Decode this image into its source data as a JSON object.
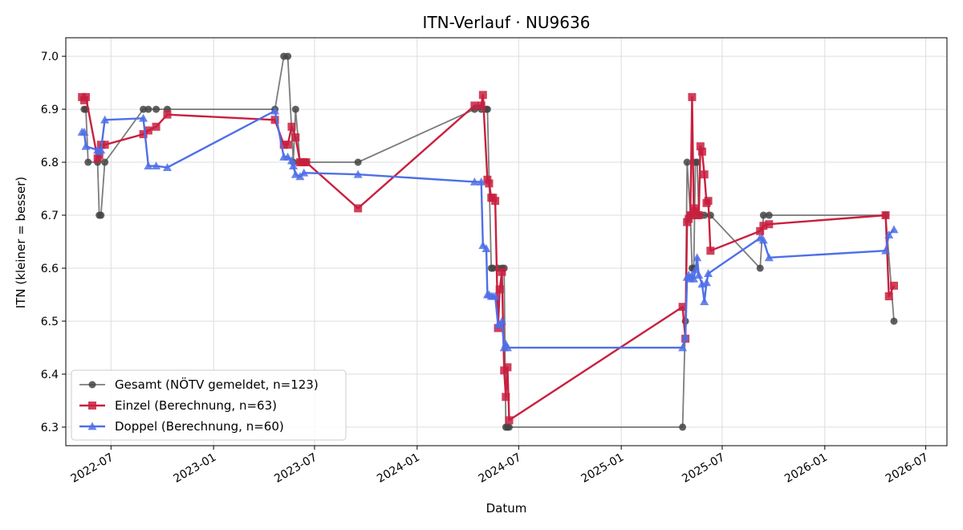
{
  "chart_data": {
    "type": "line",
    "title": "ITN-Verlauf · NU9636",
    "xlabel": "Datum",
    "ylabel": "ITN  (kleiner = besser)",
    "x_type": "date",
    "xlim": [
      "2022-04-11",
      "2026-08-08"
    ],
    "ylim": [
      6.265,
      7.035
    ],
    "y_ticks": [
      6.3,
      6.4,
      6.5,
      6.6,
      6.7,
      6.8,
      6.9,
      7.0
    ],
    "y_tick_labels": [
      "6.3",
      "6.4",
      "6.5",
      "6.6",
      "6.7",
      "6.8",
      "6.9",
      "7.0"
    ],
    "x_ticks": [
      "2022-07-01",
      "2023-01-01",
      "2023-07-01",
      "2024-01-01",
      "2024-07-01",
      "2025-01-01",
      "2025-07-01",
      "2026-01-01",
      "2026-07-01"
    ],
    "x_tick_labels": [
      "2022-07",
      "2023-01",
      "2023-07",
      "2024-01",
      "2024-07",
      "2025-01",
      "2025-07",
      "2026-01",
      "2026-07"
    ],
    "grid": true,
    "legend_position": "bottom-left",
    "series": [
      {
        "name": "Gesamt (NÖTV gemeldet, n=123)",
        "color": "#444444",
        "marker": "circle",
        "x": [
          "2022-05-14",
          "2022-05-17",
          "2022-05-21",
          "2022-06-07",
          "2022-06-10",
          "2022-06-13",
          "2022-06-20",
          "2022-08-28",
          "2022-09-06",
          "2022-09-20",
          "2022-10-10",
          "2023-04-21",
          "2023-05-07",
          "2023-05-14",
          "2023-05-24",
          "2023-05-28",
          "2023-06-05",
          "2023-06-12",
          "2023-06-16",
          "2023-09-17",
          "2024-04-13",
          "2024-04-25",
          "2024-05-04",
          "2024-05-06",
          "2024-05-13",
          "2024-05-16",
          "2024-05-25",
          "2024-06-01",
          "2024-06-05",
          "2024-06-08",
          "2024-06-11",
          "2024-06-14",
          "2025-04-21",
          "2025-04-26",
          "2025-04-29",
          "2025-05-05",
          "2025-05-08",
          "2025-05-11",
          "2025-05-14",
          "2025-05-17",
          "2025-05-20",
          "2025-05-30",
          "2025-06-10",
          "2025-09-07",
          "2025-09-13",
          "2025-09-23",
          "2026-04-20",
          "2026-05-05"
        ],
        "values": [
          6.9,
          6.9,
          6.8,
          6.8,
          6.7,
          6.7,
          6.8,
          6.9,
          6.9,
          6.9,
          6.9,
          6.9,
          7.0,
          7.0,
          6.8,
          6.9,
          6.8,
          6.8,
          6.8,
          6.8,
          6.9,
          6.9,
          6.9,
          6.9,
          6.6,
          6.6,
          6.6,
          6.6,
          6.6,
          6.3,
          6.3,
          6.3,
          6.3,
          6.5,
          6.8,
          6.7,
          6.6,
          6.6,
          6.8,
          6.8,
          6.7,
          6.7,
          6.7,
          6.6,
          6.7,
          6.7,
          6.7,
          6.5
        ]
      },
      {
        "name": "Einzel (Berechnung, n=63)",
        "color": "#c8203f",
        "marker": "square",
        "x": [
          "2022-05-10",
          "2022-05-14",
          "2022-05-17",
          "2022-06-07",
          "2022-06-10",
          "2022-06-13",
          "2022-06-20",
          "2022-08-28",
          "2022-09-06",
          "2022-09-20",
          "2022-10-10",
          "2023-04-21",
          "2023-05-07",
          "2023-05-14",
          "2023-05-21",
          "2023-05-28",
          "2023-06-05",
          "2023-06-12",
          "2023-06-16",
          "2023-09-17",
          "2024-04-13",
          "2024-04-25",
          "2024-04-28",
          "2024-05-06",
          "2024-05-09",
          "2024-05-13",
          "2024-05-16",
          "2024-05-20",
          "2024-05-25",
          "2024-05-28",
          "2024-06-01",
          "2024-06-05",
          "2024-06-08",
          "2024-06-11",
          "2024-06-14",
          "2025-04-21",
          "2025-04-26",
          "2025-04-29",
          "2025-05-02",
          "2025-05-05",
          "2025-05-08",
          "2025-05-11",
          "2025-05-14",
          "2025-05-17",
          "2025-05-20",
          "2025-05-23",
          "2025-05-26",
          "2025-05-30",
          "2025-06-03",
          "2025-06-06",
          "2025-06-10",
          "2025-09-07",
          "2025-09-13",
          "2025-09-23",
          "2026-04-20",
          "2026-04-26",
          "2026-05-05"
        ],
        "values": [
          6.923,
          6.917,
          6.923,
          6.807,
          6.813,
          6.833,
          6.833,
          6.853,
          6.86,
          6.867,
          6.89,
          6.88,
          6.833,
          6.833,
          6.867,
          6.847,
          6.8,
          6.8,
          6.8,
          6.713,
          6.907,
          6.907,
          6.927,
          6.767,
          6.76,
          6.733,
          6.733,
          6.727,
          6.487,
          6.56,
          6.593,
          6.407,
          6.357,
          6.413,
          6.313,
          6.527,
          6.467,
          6.687,
          6.693,
          6.7,
          6.923,
          6.707,
          6.713,
          6.7,
          6.7,
          6.83,
          6.82,
          6.777,
          6.723,
          6.727,
          6.633,
          6.67,
          6.68,
          6.683,
          6.7,
          6.547,
          6.567
        ]
      },
      {
        "name": "Doppel (Berechnung, n=60)",
        "color": "#4f6fe8",
        "marker": "triangle",
        "x": [
          "2022-05-10",
          "2022-05-14",
          "2022-05-17",
          "2022-06-07",
          "2022-06-10",
          "2022-06-13",
          "2022-06-20",
          "2022-08-28",
          "2022-09-06",
          "2022-09-20",
          "2022-10-10",
          "2023-04-21",
          "2023-05-07",
          "2023-05-14",
          "2023-05-21",
          "2023-05-24",
          "2023-05-28",
          "2023-06-05",
          "2023-06-12",
          "2023-09-17",
          "2024-04-13",
          "2024-04-25",
          "2024-04-28",
          "2024-05-04",
          "2024-05-06",
          "2024-05-09",
          "2024-05-13",
          "2024-05-16",
          "2024-05-20",
          "2024-05-25",
          "2024-05-28",
          "2024-06-01",
          "2024-06-05",
          "2024-06-08",
          "2024-06-11",
          "2025-04-21",
          "2025-04-26",
          "2025-04-29",
          "2025-05-02",
          "2025-05-05",
          "2025-05-08",
          "2025-05-11",
          "2025-05-14",
          "2025-05-17",
          "2025-05-20",
          "2025-05-26",
          "2025-05-30",
          "2025-06-03",
          "2025-06-06",
          "2025-09-07",
          "2025-09-13",
          "2025-09-23",
          "2026-04-20",
          "2026-04-26",
          "2026-05-05"
        ],
        "values": [
          6.857,
          6.857,
          6.83,
          6.823,
          6.82,
          6.823,
          6.88,
          6.883,
          6.793,
          6.793,
          6.79,
          6.897,
          6.81,
          6.81,
          6.803,
          6.793,
          6.777,
          6.773,
          6.78,
          6.777,
          6.763,
          6.763,
          6.643,
          6.637,
          6.55,
          6.55,
          6.547,
          6.547,
          6.547,
          6.493,
          6.493,
          6.5,
          6.45,
          6.457,
          6.45,
          6.45,
          6.47,
          6.583,
          6.587,
          6.58,
          6.587,
          6.58,
          6.597,
          6.62,
          6.587,
          6.57,
          6.537,
          6.573,
          6.59,
          6.657,
          6.653,
          6.62,
          6.633,
          6.663,
          6.673
        ]
      }
    ]
  }
}
